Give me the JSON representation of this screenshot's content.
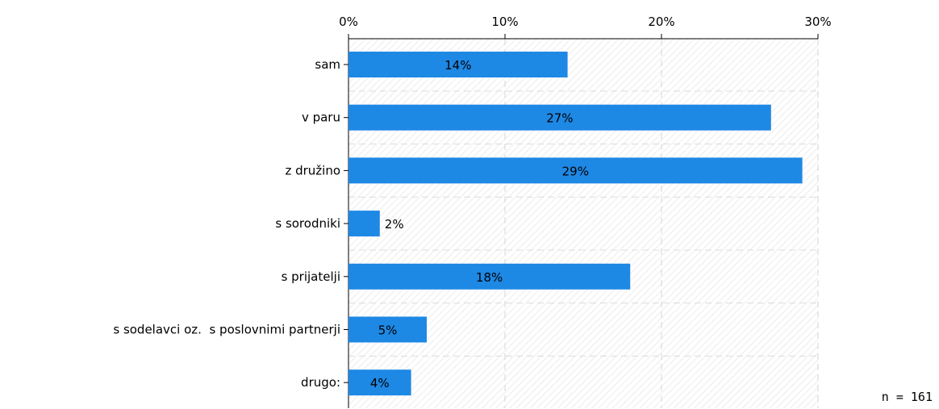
{
  "chart_data": {
    "type": "bar",
    "orientation": "horizontal",
    "categories": [
      "sam",
      "v paru",
      "z družino",
      "s sorodniki",
      "s prijatelji",
      "s sodelavci oz.  s poslovnimi partnerji",
      "drugo:"
    ],
    "values": [
      14,
      27,
      29,
      2,
      18,
      5,
      4
    ],
    "value_labels": [
      "14%",
      "27%",
      "29%",
      "2%",
      "18%",
      "5%",
      "4%"
    ],
    "xlim": [
      0,
      30
    ],
    "ticks": [
      0,
      10,
      20,
      30
    ],
    "tick_labels": [
      "0%",
      "10%",
      "20%",
      "30%"
    ],
    "grid": true,
    "bar_color": "#1e88e5",
    "note": "n = 161"
  }
}
